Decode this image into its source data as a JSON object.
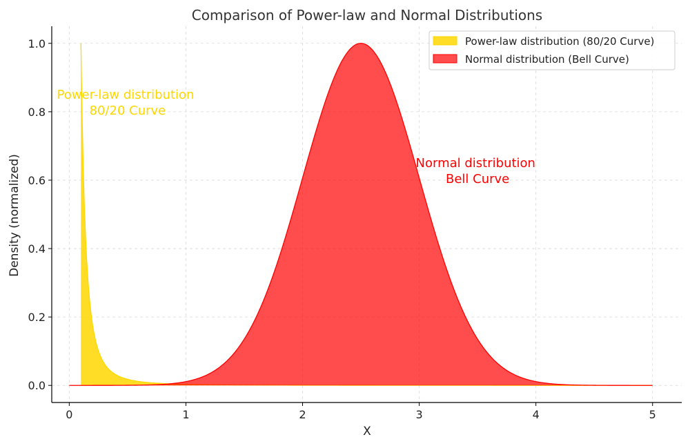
{
  "chart_data": {
    "type": "area",
    "title": "Comparison of Power-law and Normal Distributions",
    "xlabel": "X",
    "ylabel": "Density (normalized)",
    "xlim": [
      -0.15,
      5.25
    ],
    "ylim": [
      -0.05,
      1.05
    ],
    "xticks": [
      0,
      1,
      2,
      3,
      4,
      5
    ],
    "xtick_labels": [
      "0",
      "1",
      "2",
      "3",
      "4",
      "5"
    ],
    "yticks": [
      0.0,
      0.2,
      0.4,
      0.6,
      0.8,
      1.0
    ],
    "ytick_labels": [
      "0.0",
      "0.2",
      "0.4",
      "0.6",
      "0.8",
      "1.0"
    ],
    "grid": true,
    "legend_position": "top-right",
    "series": [
      {
        "name": "Power-law distribution (80/20 Curve)",
        "color": "#FFD700",
        "function": "powerlaw",
        "x_min": 0.1,
        "x_max": 5,
        "exponent": 2.5,
        "peak": 1.0
      },
      {
        "name": "Normal distribution (Bell Curve)",
        "color": "#FF0000",
        "function": "normal",
        "x_min": 0,
        "x_max": 5,
        "mean": 2.5,
        "std": 0.5,
        "peak": 1.0
      }
    ],
    "annotations": [
      {
        "lines": [
          "Power-law distribution",
          "80/20 Curve"
        ],
        "x": 0.5,
        "y": 0.83,
        "color": "#FFD700"
      },
      {
        "lines": [
          "Normal distribution",
          "Bell Curve"
        ],
        "x": 3.5,
        "y": 0.63,
        "color": "#FF0000"
      }
    ]
  }
}
